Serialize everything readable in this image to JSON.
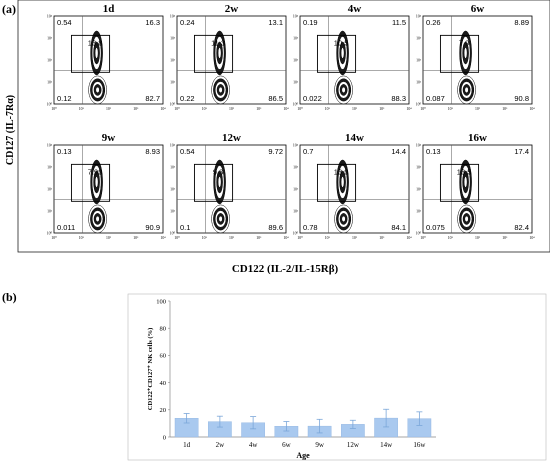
{
  "panel_labels": {
    "a": "(a)",
    "b": "(b)"
  },
  "flow_panel": {
    "ylabel": "CD127 (IL-7Rα)",
    "xlabel": "CD122 (IL-2/IL-15Rβ)",
    "tick_labels": [
      "10⁰",
      "10¹",
      "10²",
      "10³",
      "10⁴"
    ]
  },
  "chart_data": [
    {
      "type": "scatter",
      "description_of_panels": "flow cytometry contour plots, quadrant percentages",
      "panels": [
        {
          "title": "1d",
          "q_ul": "0.54",
          "q_ur": "16.3",
          "q_ll": "0.12",
          "q_lr": "82.7",
          "gate": "13.8"
        },
        {
          "title": "2w",
          "q_ul": "0.24",
          "q_ur": "13.1",
          "q_ll": "0.22",
          "q_lr": "86.5",
          "gate": "11.3"
        },
        {
          "title": "4w",
          "q_ul": "0.19",
          "q_ur": "11.5",
          "q_ll": "0.022",
          "q_lr": "88.3",
          "gate": "10.5"
        },
        {
          "title": "6w",
          "q_ul": "0.26",
          "q_ur": "8.89",
          "q_ll": "0.087",
          "q_lr": "90.8",
          "gate": "7.9"
        },
        {
          "title": "9w",
          "q_ul": "0.13",
          "q_ur": "8.93",
          "q_ll": "0.011",
          "q_lr": "90.9",
          "gate": "7.99"
        },
        {
          "title": "12w",
          "q_ul": "0.54",
          "q_ur": "9.72",
          "q_ll": "0.1",
          "q_lr": "89.6",
          "gate": "9.3"
        },
        {
          "title": "14w",
          "q_ul": "0.7",
          "q_ur": "14.4",
          "q_ll": "0.78",
          "q_lr": "84.1",
          "gate": "13.9"
        },
        {
          "title": "16w",
          "q_ul": "0.13",
          "q_ur": "17.4",
          "q_ll": "0.075",
          "q_lr": "82.4",
          "gate": "13.5"
        }
      ]
    },
    {
      "type": "bar",
      "categories": [
        "1d",
        "2w",
        "4w",
        "6w",
        "9w",
        "12w",
        "14w",
        "16w"
      ],
      "values": [
        13.8,
        11.3,
        10.5,
        7.9,
        8.0,
        9.3,
        13.9,
        13.5
      ],
      "errors": [
        3.5,
        4.0,
        4.5,
        3.5,
        5.0,
        3.0,
        6.5,
        5.0
      ],
      "title": "",
      "xlabel": "Age",
      "ylabel": "CD122⁺CD127⁺ NK cells (%)",
      "ylim": [
        0,
        100
      ],
      "yticks": [
        "0",
        "20",
        "40",
        "60",
        "80",
        "100"
      ],
      "bar_color": "#a9c9ef",
      "error_color": "#7ba7d9"
    }
  ]
}
